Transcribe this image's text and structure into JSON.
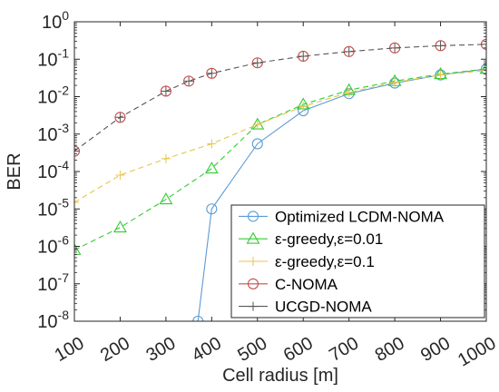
{
  "chart_data": {
    "type": "line",
    "title": "",
    "xlabel": "Cell radius [m]",
    "ylabel": "BER",
    "xscale": "linear",
    "yscale": "log",
    "xlim": [
      100,
      1000
    ],
    "ylim": [
      1e-08,
      1
    ],
    "grid": false,
    "legend_position": "bottom-right",
    "x_ticks": [
      100,
      200,
      300,
      400,
      500,
      600,
      700,
      800,
      900,
      1000
    ],
    "x_tick_labels": [
      "100",
      "200",
      "300",
      "400",
      "500",
      "600",
      "700",
      "800",
      "900",
      "1000"
    ],
    "y_ticks": [
      1e-08,
      1e-07,
      1e-06,
      1e-05,
      0.0001,
      0.001,
      0.01,
      0.1,
      1
    ],
    "y_tick_labels": [
      {
        "base": "10",
        "exp": "-8"
      },
      {
        "base": "10",
        "exp": "-7"
      },
      {
        "base": "10",
        "exp": "-6"
      },
      {
        "base": "10",
        "exp": "-5"
      },
      {
        "base": "10",
        "exp": "-4"
      },
      {
        "base": "10",
        "exp": "-3"
      },
      {
        "base": "10",
        "exp": "-2"
      },
      {
        "base": "10",
        "exp": "-1"
      },
      {
        "base": "10",
        "exp": "0"
      }
    ],
    "series": [
      {
        "name": "Optimized LCDM-NOMA",
        "color": "#5b9bd5",
        "marker": "circle",
        "line": "solid",
        "x": [
          370,
          400,
          500,
          600,
          700,
          800,
          900,
          1000
        ],
        "y": [
          1e-08,
          1e-05,
          0.00055,
          0.0042,
          0.012,
          0.023,
          0.038,
          0.055
        ]
      },
      {
        "name": "ε-greedy,ε=0.01",
        "color": "#33cc33",
        "marker": "triangle",
        "line": "dashed",
        "x": [
          100,
          200,
          300,
          400,
          500,
          600,
          700,
          800,
          900,
          1000
        ],
        "y": [
          8e-07,
          3.2e-06,
          1.8e-05,
          0.00012,
          0.0018,
          0.0062,
          0.015,
          0.026,
          0.04,
          0.055
        ]
      },
      {
        "name": "ε-greedy,ε=0.1",
        "color": "#e8c547",
        "marker": "plus",
        "line": "dashed",
        "x": [
          100,
          200,
          300,
          400,
          500,
          600,
          700,
          800,
          900,
          1000
        ],
        "y": [
          1.5e-05,
          8e-05,
          0.00022,
          0.00055,
          0.0018,
          0.0055,
          0.013,
          0.024,
          0.038,
          0.05
        ]
      },
      {
        "name": "C-NOMA",
        "color": "#c84b4b",
        "marker": "circle",
        "line": "none",
        "x": [
          100,
          200,
          300,
          350,
          400,
          500,
          600,
          700,
          800,
          900,
          1000
        ],
        "y": [
          0.00035,
          0.0028,
          0.014,
          0.026,
          0.042,
          0.08,
          0.12,
          0.16,
          0.2,
          0.23,
          0.25
        ]
      },
      {
        "name": "UCGD-NOMA",
        "color": "#555555",
        "marker": "plus",
        "line": "dashed",
        "x": [
          100,
          200,
          300,
          350,
          400,
          500,
          600,
          700,
          800,
          900,
          1000
        ],
        "y": [
          0.00035,
          0.0028,
          0.014,
          0.026,
          0.042,
          0.08,
          0.12,
          0.16,
          0.2,
          0.23,
          0.25
        ]
      }
    ]
  }
}
